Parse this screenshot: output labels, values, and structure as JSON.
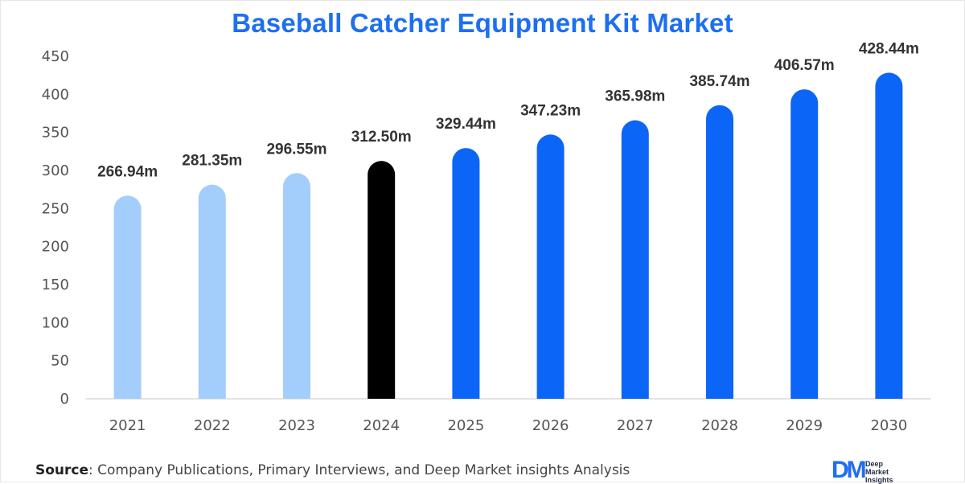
{
  "chart_data": {
    "type": "bar",
    "title": "Baseball Catcher Equipment Kit Market",
    "categories": [
      "2021",
      "2022",
      "2023",
      "2024",
      "2025",
      "2026",
      "2027",
      "2028",
      "2029",
      "2030"
    ],
    "values": [
      266.94,
      281.35,
      296.55,
      312.5,
      329.44,
      347.23,
      365.98,
      385.74,
      406.57,
      428.44
    ],
    "value_labels": [
      "266.94m",
      "281.35m",
      "296.55m",
      "312.50m",
      "329.44m",
      "347.23m",
      "365.98m",
      "385.74m",
      "406.57m",
      "428.44m"
    ],
    "bar_colors": [
      "#a3cdfb",
      "#a3cdfb",
      "#a3cdfb",
      "#000000",
      "#0b66f7",
      "#0b66f7",
      "#0b66f7",
      "#0b66f7",
      "#0b66f7",
      "#0b66f7"
    ],
    "ylim": [
      0,
      450
    ],
    "yticks": [
      "0",
      "50",
      "100",
      "150",
      "200",
      "250",
      "300",
      "350",
      "400",
      "450"
    ],
    "xlabel": "",
    "ylabel": "",
    "grid": false
  },
  "footer": {
    "source_label": "Source",
    "source_text": ": Company Publications, Primary Interviews, and Deep Market insights Analysis"
  },
  "logo": {
    "mark": "DM",
    "line1": "Deep",
    "line2": "Market",
    "line3": "Insights"
  },
  "colors": {
    "title": "#1e6ff0",
    "historical": "#a3cdfb",
    "base_year": "#000000",
    "forecast": "#0b66f7"
  }
}
